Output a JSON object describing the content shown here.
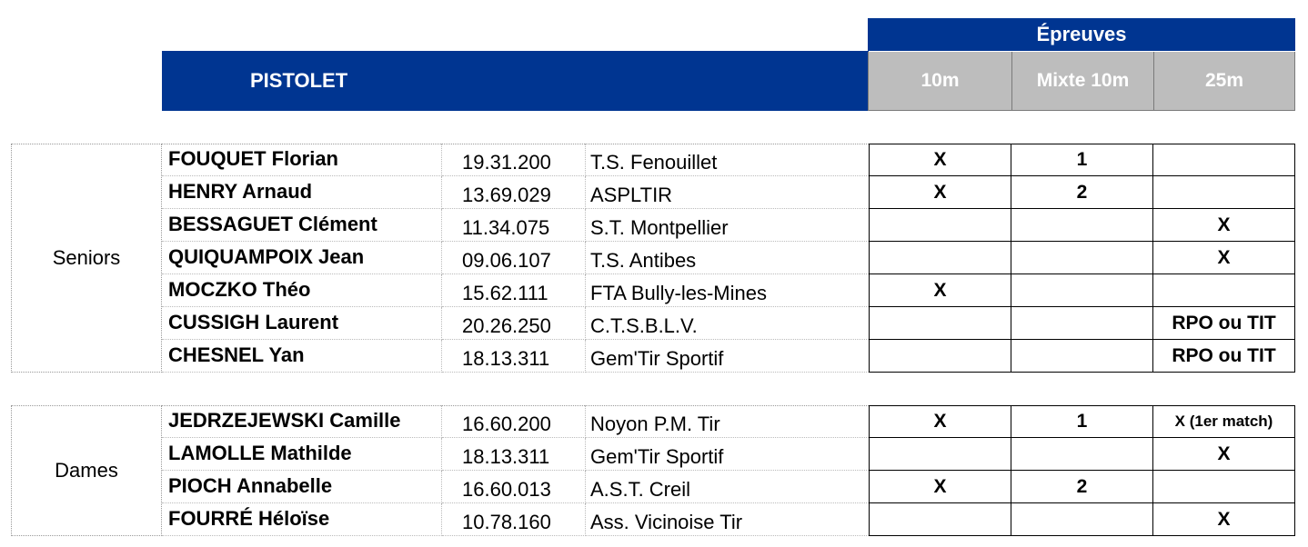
{
  "header": {
    "epreuves": "Épreuves",
    "discipline": "PISTOLET",
    "events": [
      "10m",
      "Mixte 10m",
      "25m"
    ]
  },
  "groups": [
    {
      "category": "Seniors",
      "rows": [
        {
          "name": "FOUQUET Florian",
          "license": "19.31.200",
          "club": "T.S. Fenouillet",
          "e10": "X",
          "mix": "1",
          "e25": ""
        },
        {
          "name": "HENRY Arnaud",
          "license": "13.69.029",
          "club": "ASPLTIR",
          "e10": "X",
          "mix": "2",
          "e25": ""
        },
        {
          "name": "BESSAGUET Clément",
          "license": "11.34.075",
          "club": "S.T. Montpellier",
          "e10": "",
          "mix": "",
          "e25": "X"
        },
        {
          "name": "QUIQUAMPOIX Jean",
          "license": "09.06.107",
          "club": "T.S. Antibes",
          "e10": "",
          "mix": "",
          "e25": "X"
        },
        {
          "name": "MOCZKO Théo",
          "license": "15.62.111",
          "club": "FTA Bully-les-Mines",
          "e10": "X",
          "mix": "",
          "e25": ""
        },
        {
          "name": "CUSSIGH Laurent",
          "license": "20.26.250",
          "club": "C.T.S.B.L.V.",
          "e10": "",
          "mix": "",
          "e25": "RPO ou TIT"
        },
        {
          "name": "CHESNEL Yan",
          "license": "18.13.311",
          "club": "Gem'Tir Sportif",
          "e10": "",
          "mix": "",
          "e25": "RPO ou TIT"
        }
      ]
    },
    {
      "category": "Dames",
      "rows": [
        {
          "name": "JEDRZEJEWSKI Camille",
          "license": "16.60.200",
          "club": "Noyon P.M. Tir",
          "e10": "X",
          "mix": "1",
          "e25": "X (1er match)"
        },
        {
          "name": "LAMOLLE Mathilde",
          "license": "18.13.311",
          "club": "Gem'Tir Sportif",
          "e10": "",
          "mix": "",
          "e25": "X"
        },
        {
          "name": "PIOCH Annabelle",
          "license": "16.60.013",
          "club": "A.S.T. Creil",
          "e10": "X",
          "mix": "2",
          "e25": ""
        },
        {
          "name": "FOURRÉ Héloïse",
          "license": "10.78.160",
          "club": "Ass. Vicinoise Tir",
          "e10": "",
          "mix": "",
          "e25": "X"
        }
      ]
    }
  ]
}
